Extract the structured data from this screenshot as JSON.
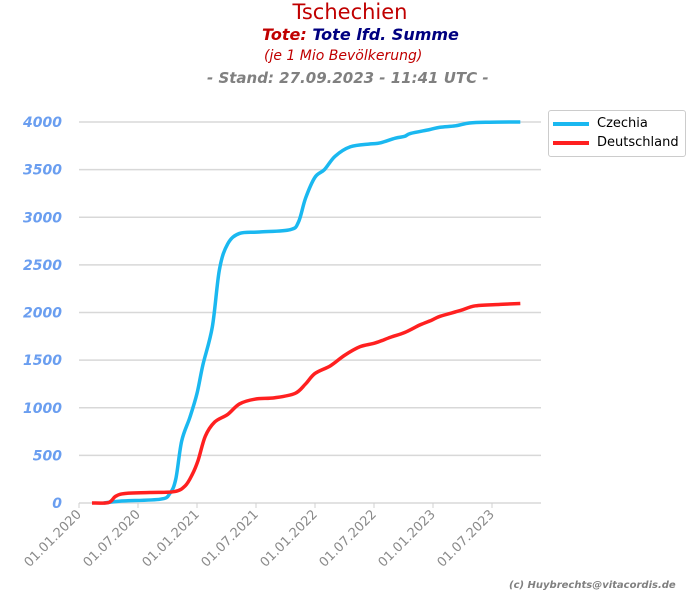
{
  "chart_data": {
    "type": "line",
    "title": "Tschechien",
    "subtitle_prefix": "Tote:",
    "subtitle": "Tote lfd. Summe",
    "note": "(je 1 Mio Bevölkerung)",
    "stand": "- Stand: 27.09.2023 - 11:41 UTC -",
    "copyright": "(c) Huybrechts@vitacordis.de",
    "xlabel": "",
    "ylabel": "",
    "x_ticks": [
      "01.01.2020",
      "01.07.2020",
      "01.01.2021",
      "01.07.2021",
      "01.01.2022",
      "01.07.2022",
      "01.01.2023",
      "01.07.2023"
    ],
    "ylim": [
      0,
      4000
    ],
    "y_ticks": [
      "0",
      "500",
      "1000",
      "1500",
      "2000",
      "2500",
      "3000",
      "3500",
      "4000"
    ],
    "grid": true,
    "legend_position": "top-right",
    "series": [
      {
        "name": "Czechia",
        "color": "#1ab8f0",
        "x": [
          2020.21,
          2020.35,
          2020.69,
          2020.77,
          2020.82,
          2020.87,
          2020.94,
          2021.0,
          2021.05,
          2021.13,
          2021.19,
          2021.26,
          2021.36,
          2021.53,
          2021.79,
          2021.86,
          2021.92,
          2022.0,
          2022.08,
          2022.17,
          2022.3,
          2022.47,
          2022.55,
          2022.68,
          2022.76,
          2022.81,
          2022.97,
          2023.06,
          2023.19,
          2023.31,
          2023.48,
          2023.74
        ],
        "values": [
          0,
          20,
          40,
          100,
          250,
          650,
          900,
          1150,
          1450,
          1850,
          2450,
          2720,
          2830,
          2845,
          2870,
          2950,
          3200,
          3420,
          3500,
          3640,
          3740,
          3770,
          3780,
          3830,
          3850,
          3880,
          3920,
          3945,
          3960,
          3990,
          3998,
          4000
        ]
      },
      {
        "name": "Deutschland",
        "color": "#ff2020",
        "x": [
          2020.11,
          2020.25,
          2020.31,
          2020.39,
          2020.6,
          2020.81,
          2020.9,
          2020.96,
          2021.01,
          2021.07,
          2021.15,
          2021.26,
          2021.36,
          2021.49,
          2021.66,
          2021.83,
          2021.92,
          2022.0,
          2022.13,
          2022.25,
          2022.38,
          2022.51,
          2022.64,
          2022.76,
          2022.89,
          2022.99,
          2023.06,
          2023.23,
          2023.36,
          2023.57,
          2023.74
        ],
        "values": [
          0,
          5,
          70,
          100,
          110,
          120,
          180,
          300,
          450,
          700,
          850,
          930,
          1040,
          1090,
          1105,
          1150,
          1250,
          1360,
          1440,
          1550,
          1640,
          1680,
          1740,
          1790,
          1870,
          1920,
          1960,
          2020,
          2070,
          2085,
          2095
        ]
      }
    ]
  }
}
